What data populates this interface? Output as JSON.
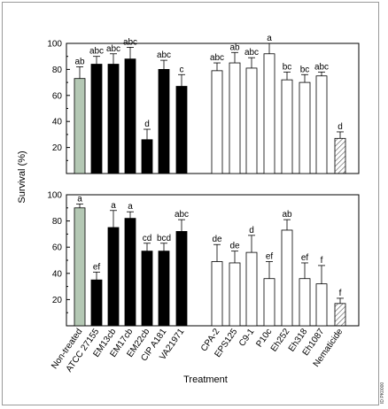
{
  "chart_data": [
    {
      "type": "bar",
      "panel": "top",
      "ylabel": "Survival (%)",
      "ylim": [
        0,
        100
      ],
      "yticks": [
        "20",
        "40",
        "60",
        "80",
        "100"
      ],
      "grid": false,
      "categories": [
        "Non-treated",
        "ATCC 27155",
        "EM13cb",
        "EM17cb",
        "EM22cb",
        "CIP A181",
        "VA21971",
        "CPA-2",
        "EPS125",
        "C9-1",
        "P10c",
        "Eh252",
        "Eh318",
        "Eh1087",
        "Nematicide"
      ],
      "values": [
        73,
        84,
        84,
        88,
        26,
        80,
        67,
        79,
        85,
        81,
        92,
        72,
        70,
        75,
        27
      ],
      "errors": [
        9,
        6,
        8,
        9,
        8,
        7,
        9,
        6,
        8,
        8,
        8,
        6,
        6,
        3,
        5
      ],
      "letters": [
        "ab",
        "abc",
        "abc",
        "abc",
        "d",
        "abc",
        "c",
        "abc",
        "ab",
        "abc",
        "a",
        "bc",
        "bc",
        "abc",
        "d"
      ],
      "bar_styles": [
        "gray",
        "black",
        "black",
        "black",
        "black",
        "black",
        "black",
        "white",
        "white",
        "white",
        "white",
        "white",
        "white",
        "white",
        "hatched"
      ]
    },
    {
      "type": "bar",
      "panel": "bottom",
      "ylim": [
        0,
        100
      ],
      "yticks": [
        "20",
        "40",
        "60",
        "80",
        "100"
      ],
      "grid": false,
      "xlabel": "Treatment",
      "categories": [
        "Non-treated",
        "ATCC 27155",
        "EM13cb",
        "EM17cb",
        "EM22cb",
        "CIP A181",
        "VA21971",
        "CPA-2",
        "EPS125",
        "C9-1",
        "P10c",
        "Eh252",
        "Eh318",
        "Eh1087",
        "Nematicide"
      ],
      "values": [
        90,
        35,
        75,
        82,
        57,
        57,
        72,
        49,
        48,
        56,
        36,
        73,
        36,
        32,
        17
      ],
      "errors": [
        3,
        6,
        13,
        5,
        6,
        6,
        9,
        13,
        9,
        13,
        13,
        8,
        12,
        14,
        4
      ],
      "letters": [
        "a",
        "ef",
        "a",
        "a",
        "cd",
        "bcd",
        "abc",
        "de",
        "de",
        "d",
        "ef",
        "ab",
        "ef",
        "f",
        "f"
      ],
      "bar_styles": [
        "gray",
        "black",
        "black",
        "black",
        "black",
        "black",
        "black",
        "white",
        "white",
        "white",
        "white",
        "white",
        "white",
        "white",
        "hatched"
      ]
    }
  ],
  "colors": {
    "gray": "#b4c8b4",
    "black": "#000000",
    "white": "#ffffff",
    "hatched": "#555555"
  },
  "side_note": "ID PK0000"
}
